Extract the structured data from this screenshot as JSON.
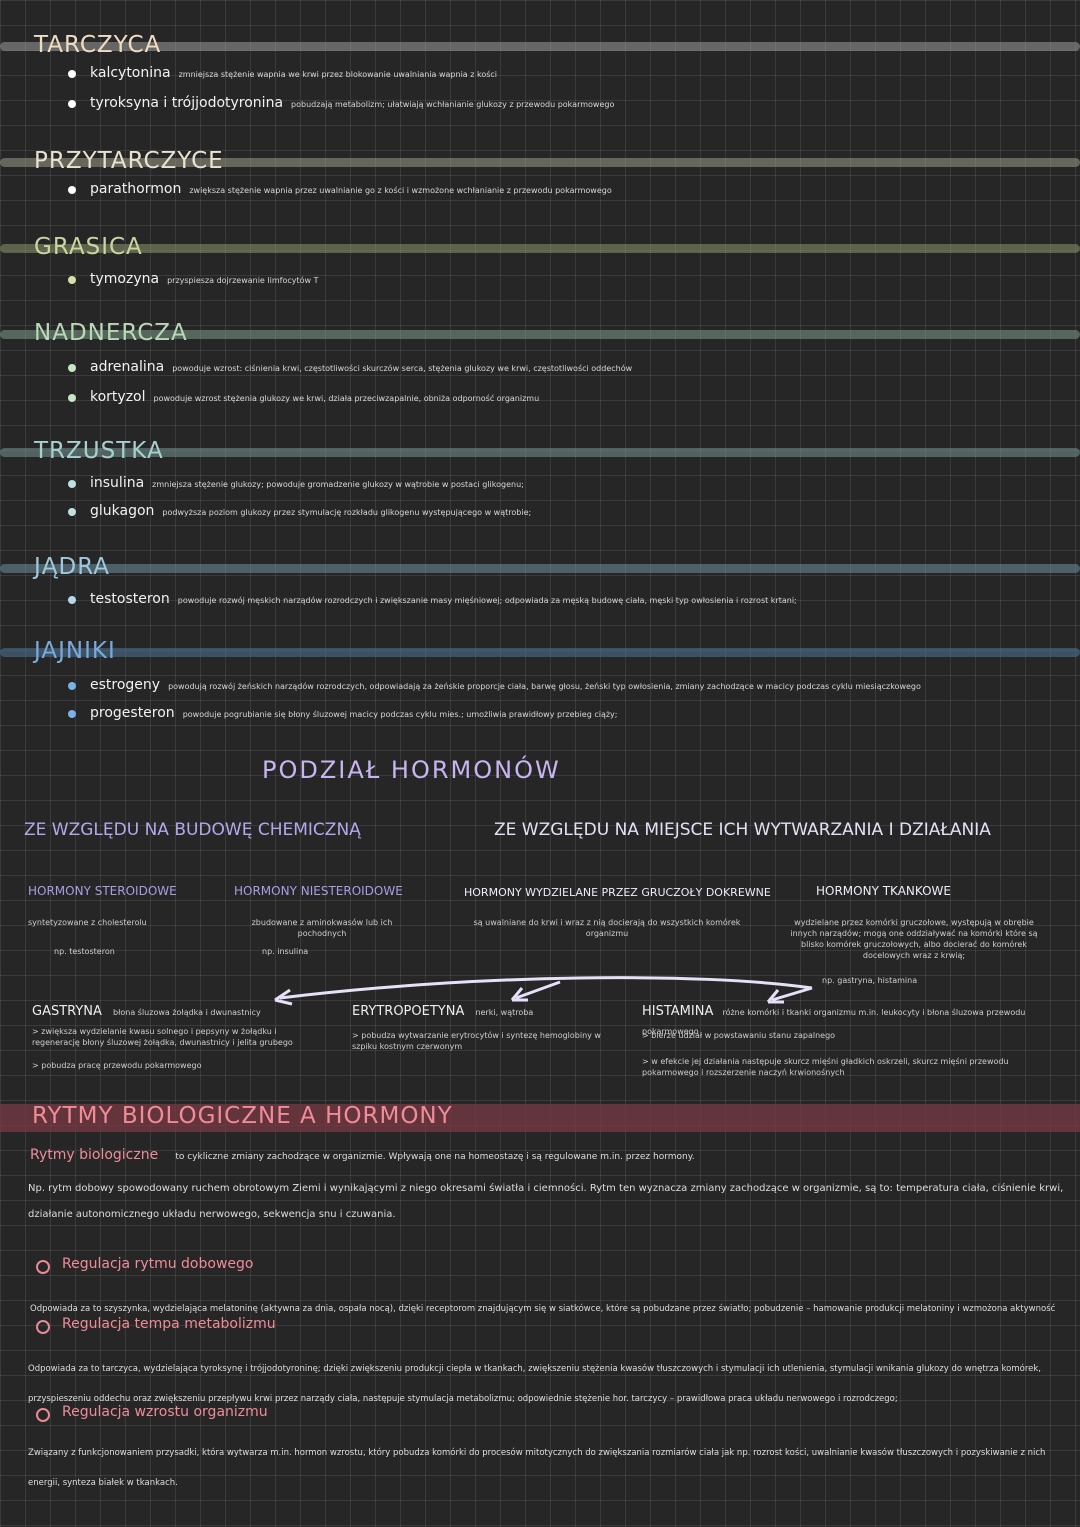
{
  "sections": [
    {
      "title": "TARCZYCA",
      "color": "#f0dcc0",
      "band": "#9a9a9a",
      "items": [
        {
          "term": "kalcytonina",
          "desc": "zmniejsza stężenie wapnia we krwi przez blokowanie uwalniania wapnia z kości",
          "dot": "#ffffff"
        },
        {
          "term": "tyroksyna i trójjodotyronina",
          "desc": "pobudzają metabolizm; ułatwiają wchłanianie glukozy z przewodu pokarmowego",
          "dot": "#ffffff"
        }
      ]
    },
    {
      "title": "PRZYTARCZYCE",
      "color": "#e8e3d0",
      "band": "#9a9a88",
      "items": [
        {
          "term": "parathormon",
          "desc": "zwiększa stężenie wapnia przez uwalnianie go z kości i wzmożone wchłanianie z przewodu pokarmowego",
          "dot": "#ffffff"
        }
      ]
    },
    {
      "title": "GRASICA",
      "color": "#c9d6a2",
      "band": "#8a9468",
      "items": [
        {
          "term": "tymozyna",
          "desc": "przyspiesza dojrzewanie limfocytów T",
          "dot": "#d4e0a8"
        }
      ]
    },
    {
      "title": "NADNERCZA",
      "color": "#b8d8b8",
      "band": "#7f9a88",
      "items": [
        {
          "term": "adrenalina",
          "desc": "powoduje wzrost: ciśnienia krwi, częstotliwości skurczów serca, stężenia glukozy we krwi, częstotliwości oddechów",
          "dot": "#c6e6c6"
        },
        {
          "term": "kortyzol",
          "desc": "powoduje wzrost stężenia glukozy we krwi, działa przeciwzapalnie, obniża odporność organizmu",
          "dot": "#c6e6c6"
        }
      ]
    },
    {
      "title": "TRZUSTKA",
      "color": "#a8d0d0",
      "band": "#74958f",
      "items": [
        {
          "term": "insulina",
          "desc": "zmniejsza stężenie glukozy; powoduje gromadzenie glukozy w wątrobie w postaci glikogenu;",
          "dot": "#c0e0e0"
        },
        {
          "term": "glukagon",
          "desc": "podwyższa poziom glukozy przez stymulację rozkładu glikogenu występującego w wątrobie;",
          "dot": "#c0e0e0"
        }
      ]
    },
    {
      "title": "JĄDRA",
      "color": "#a0c8dc",
      "band": "#6d8fa0",
      "items": [
        {
          "term": "testosteron",
          "desc": "powoduje rozwój męskich narządów rozrodczych i zwiększanie masy mięśniowej; odpowiada za męską budowę ciała, męski typ owłosienia i rozrost krtani;",
          "dot": "#b4d6e8"
        }
      ]
    },
    {
      "title": "JAJNIKI",
      "color": "#78aadc",
      "band": "#4e7596",
      "items": [
        {
          "term": "estrogeny",
          "desc": "powodują rozwój żeńskich narządów rozrodczych, odpowiadają za żeńskie proporcje ciała, barwę głosu, żeński typ owłosienia, zmiany zachodzące w macicy podczas cyklu miesiączkowego",
          "dot": "#7ab2e6"
        },
        {
          "term": "progesteron",
          "desc": "powoduje pogrubianie się błony śluzowej macicy podczas cyklu mies.; umożliwia prawidłowy przebieg ciąży;",
          "dot": "#7ab2e6"
        }
      ]
    }
  ],
  "division": {
    "title": "PODZIAŁ HORMONÓW",
    "left_heading": "ZE WZGLĘDU NA BUDOWĘ CHEMICZNĄ",
    "right_heading": "ZE WZGLĘDU NA MIEJSCE ICH WYTWARZANIA I DZIAŁANIA",
    "cols": [
      {
        "title": "HORMONY STEROIDOWE",
        "text": "syntetyzowane z cholesterolu",
        "example": "np. testosteron"
      },
      {
        "title": "HORMONY NIESTEROIDOWE",
        "text": "zbudowane z aminokwasów lub ich pochodnych",
        "example": "np. insulina"
      },
      {
        "title": "HORMONY WYDZIELANE PRZEZ GRUCZOŁY DOKREWNE",
        "text": "są uwalniane do krwi i wraz z nią docierają do wszystkich komórek organizmu",
        "example": ""
      },
      {
        "title": "HORMONY TKANKOWE",
        "text": "wydzielane przez komórki gruczołowe, występują w obrębie innych narządów; mogą one oddziaływać na komórki które są blisko komórek gruczołowych, albo docierać do komórek docelowych wraz z krwią;",
        "example": "np. gastryna, histamina"
      }
    ],
    "tissue": [
      {
        "name": "GASTRYNA",
        "origin": "błona śluzowa żołądka i dwunastnicy",
        "points": [
          "zwiększa wydzielanie kwasu solnego i pepsyny w żołądku i regenerację błony śluzowej żołądka, dwunastnicy i jelita grubego",
          "pobudza pracę przewodu pokarmowego"
        ]
      },
      {
        "name": "ERYTROPOETYNA",
        "origin": "nerki, wątroba",
        "points": [
          "pobudza wytwarzanie erytrocytów i syntezę hemoglobiny w szpiku kostnym czerwonym"
        ]
      },
      {
        "name": "HISTAMINA",
        "origin": "różne komórki i tkanki organizmu m.in. leukocyty i błona śluzowa przewodu pokarmowego",
        "points": [
          "bierze udział w powstawaniu stanu zapalnego",
          "w efekcie jej działania następuje skurcz mięśni gładkich oskrzeli, skurcz mięśni przewodu pokarmowego i rozszerzenie naczyń krwionośnych"
        ]
      }
    ]
  },
  "rhythms": {
    "title": "RYTMY BIOLOGICZNE A HORMONY",
    "intro_term": "Rytmy biologiczne",
    "intro": "to cykliczne zmiany zachodzące w organizmie. Wpływają one na homeostazę i są regulowane m.in. przez hormony.",
    "example": "Np. rytm dobowy spowodowany ruchem obrotowym Ziemi i wynikającymi z niego okresami światła i ciemności. Rytm ten wyznacza zmiany zachodzące w organizmie, są to: temperatura ciała, ciśnienie krwi, działanie autonomicznego układu nerwowego, sekwencja snu i czuwania.",
    "items": [
      {
        "title": "Regulacja rytmu dobowego",
        "text": "Odpowiada za to szyszynka, wydzielająca melatoninę (aktywna za dnia, ospała nocą), dzięki receptorom znajdującym się w siatkówce, które są pobudzane przez światło; pobudzenie – hamowanie produkcji melatoniny i wzmożona aktywność"
      },
      {
        "title": "Regulacja tempa metabolizmu",
        "text": "Odpowiada za to tarczyca, wydzielająca tyroksynę i trójjodotyroninę; dzięki zwiększeniu produkcji ciepła w tkankach, zwiększeniu stężenia kwasów tłuszczowych i stymulacji ich utlenienia, stymulacji wnikania glukozy do wnętrza komórek, przyspieszeniu oddechu oraz zwiększeniu przepływu krwi przez narządy ciała, następuje stymulacja metabolizmu; odpowiednie stężenie hor. tarczycy – prawidłowa praca układu nerwowego i rozrodczego;"
      },
      {
        "title": "Regulacja wzrostu organizmu",
        "text": "Związany z funkcjonowaniem przysadki, która wytwarza m.in. hormon wzrostu, który pobudza komórki do procesów mitotycznych do zwiększania rozmiarów ciała jak np. rozrost kości, uwalnianie kwasów tłuszczowych i pozyskiwanie z nich energii, synteza białek w tkankach."
      }
    ]
  }
}
